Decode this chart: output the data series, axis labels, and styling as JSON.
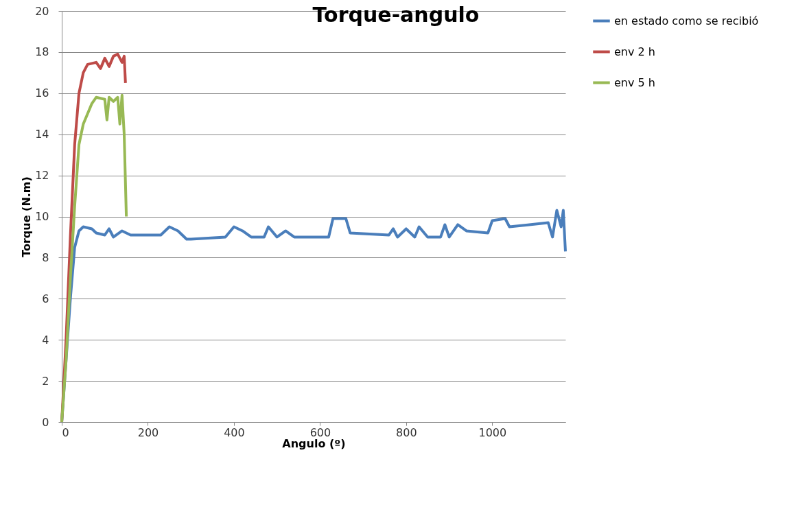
{
  "chart_data": {
    "type": "line",
    "title": "Torque-angulo",
    "xlabel": "Angulo (º)",
    "ylabel": "Torque (N.m)",
    "xlim": [
      0,
      1170
    ],
    "xticks": [
      0,
      200,
      400,
      600,
      800,
      1000
    ],
    "ylim": [
      0,
      20
    ],
    "yticks": [
      0,
      2,
      4,
      6,
      8,
      10,
      12,
      14,
      16,
      18,
      20
    ],
    "grid": "y",
    "legend": "right",
    "marker": "none",
    "line_style": "solid",
    "series": [
      {
        "name": "en estado como se recibió",
        "color": "#4a7ebb",
        "x": [
          0,
          10,
          20,
          30,
          40,
          50,
          70,
          80,
          100,
          110,
          120,
          140,
          160,
          230,
          250,
          270,
          290,
          300,
          380,
          400,
          420,
          440,
          470,
          480,
          500,
          520,
          540,
          620,
          630,
          660,
          670,
          760,
          770,
          780,
          800,
          820,
          830,
          850,
          880,
          890,
          900,
          920,
          940,
          990,
          1000,
          1030,
          1040,
          1130,
          1140,
          1150,
          1160,
          1165,
          1170
        ],
        "values": [
          0,
          3,
          6,
          8.5,
          9.3,
          9.5,
          9.4,
          9.2,
          9.1,
          9.4,
          9.0,
          9.3,
          9.1,
          9.1,
          9.5,
          9.3,
          8.9,
          8.9,
          9.0,
          9.5,
          9.3,
          9.0,
          9.0,
          9.5,
          9.0,
          9.3,
          9.0,
          9.0,
          9.9,
          9.9,
          9.2,
          9.1,
          9.4,
          9.0,
          9.4,
          9.0,
          9.5,
          9.0,
          9.0,
          9.6,
          9.0,
          9.6,
          9.3,
          9.2,
          9.8,
          9.9,
          9.5,
          9.7,
          9.0,
          10.3,
          9.5,
          10.3,
          8.3
        ]
      },
      {
        "name": "env 2 h",
        "color": "#be4b48",
        "x": [
          0,
          10,
          20,
          30,
          40,
          50,
          60,
          80,
          90,
          100,
          110,
          120,
          130,
          140,
          145,
          148
        ],
        "values": [
          0,
          4,
          9,
          13.5,
          16,
          17,
          17.4,
          17.5,
          17.2,
          17.7,
          17.3,
          17.8,
          17.9,
          17.5,
          17.8,
          16.5
        ]
      },
      {
        "name": "env 5 h",
        "color": "#98b954",
        "x": [
          0,
          10,
          20,
          30,
          40,
          50,
          60,
          70,
          80,
          100,
          105,
          110,
          120,
          130,
          135,
          140,
          145,
          150
        ],
        "values": [
          0,
          3,
          7,
          10.5,
          13.5,
          14.5,
          15,
          15.5,
          15.8,
          15.7,
          14.7,
          15.8,
          15.6,
          15.8,
          14.5,
          15.9,
          14,
          10
        ]
      }
    ]
  }
}
